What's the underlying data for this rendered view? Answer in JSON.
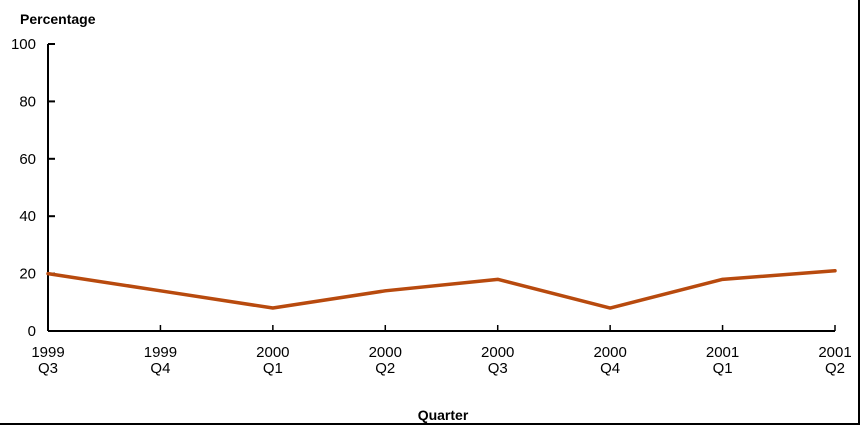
{
  "chart_data": {
    "type": "line",
    "title": "",
    "ylabel": "Percentage",
    "xlabel": "Quarter",
    "categories": [
      [
        "1999",
        "Q3"
      ],
      [
        "1999",
        "Q4"
      ],
      [
        "2000",
        "Q1"
      ],
      [
        "2000",
        "Q2"
      ],
      [
        "2000",
        "Q3"
      ],
      [
        "2000",
        "Q4"
      ],
      [
        "2001",
        "Q1"
      ],
      [
        "2001",
        "Q2"
      ]
    ],
    "series": [
      {
        "values": [
          20,
          14,
          8,
          14,
          18,
          8,
          18,
          21
        ],
        "color": "#b84a0e"
      }
    ],
    "ylim": [
      0,
      100
    ],
    "yticks": [
      0,
      20,
      40,
      60,
      80,
      100
    ],
    "grid": false,
    "legend": "none"
  }
}
